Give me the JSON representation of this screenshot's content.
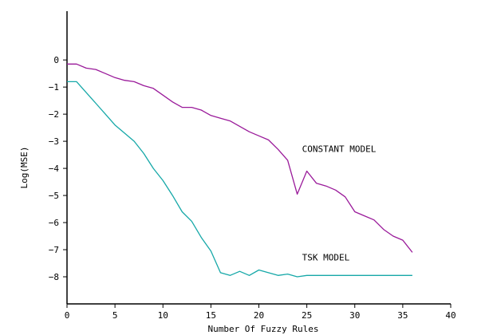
{
  "chart_data": {
    "type": "line",
    "title": "",
    "xlabel": "Number Of Fuzzy Rules",
    "ylabel": "Log(MSE)",
    "xlim": [
      0,
      40
    ],
    "ylim": [
      -9,
      1.8
    ],
    "xticks": [
      0,
      5,
      10,
      15,
      20,
      25,
      30,
      35,
      40
    ],
    "yticks": [
      0,
      -1,
      -2,
      -3,
      -4,
      -5,
      -6,
      -7,
      -8
    ],
    "grid": false,
    "legend": "none",
    "annotations": [
      {
        "text": "CONSTANT MODEL",
        "x": 24.5,
        "y": -3.4
      },
      {
        "text": "TSK MODEL",
        "x": 24.5,
        "y": -7.4
      }
    ],
    "series": [
      {
        "label": "CONSTANT MODEL",
        "color": "#9a1a9a",
        "x": [
          0,
          1,
          2,
          3,
          4,
          5,
          6,
          7,
          8,
          9,
          10,
          11,
          12,
          13,
          14,
          15,
          16,
          17,
          18,
          19,
          20,
          21,
          22,
          23,
          24,
          25,
          26,
          27,
          28,
          29,
          30,
          31,
          32,
          33,
          34,
          35,
          36
        ],
        "y": [
          -0.15,
          -0.15,
          -0.3,
          -0.35,
          -0.5,
          -0.65,
          -0.75,
          -0.8,
          -0.95,
          -1.05,
          -1.3,
          -1.55,
          -1.75,
          -1.75,
          -1.85,
          -2.05,
          -2.15,
          -2.25,
          -2.45,
          -2.65,
          -2.8,
          -2.95,
          -3.3,
          -3.7,
          -4.95,
          -4.1,
          -4.55,
          -4.65,
          -4.8,
          -5.05,
          -5.6,
          -5.75,
          -5.9,
          -6.25,
          -6.5,
          -6.65,
          -7.1
        ]
      },
      {
        "label": "TSK MODEL",
        "color": "#16a8a8",
        "x": [
          0,
          1,
          2,
          3,
          4,
          5,
          6,
          7,
          8,
          9,
          10,
          11,
          12,
          13,
          14,
          15,
          16,
          17,
          18,
          19,
          20,
          21,
          22,
          23,
          24,
          25,
          26,
          27,
          28,
          29,
          30,
          31,
          32,
          33,
          34,
          35,
          36
        ],
        "y": [
          -0.8,
          -0.8,
          -1.2,
          -1.6,
          -2.0,
          -2.4,
          -2.7,
          -3.0,
          -3.45,
          -4.0,
          -4.45,
          -5.0,
          -5.6,
          -5.95,
          -6.55,
          -7.05,
          -7.85,
          -7.95,
          -7.8,
          -7.95,
          -7.75,
          -7.85,
          -7.95,
          -7.9,
          -8.0,
          -7.95,
          -7.95,
          -7.95,
          -7.95,
          -7.95,
          -7.95,
          -7.95,
          -7.95,
          -7.95,
          -7.95,
          -7.95,
          -7.95
        ]
      }
    ]
  }
}
